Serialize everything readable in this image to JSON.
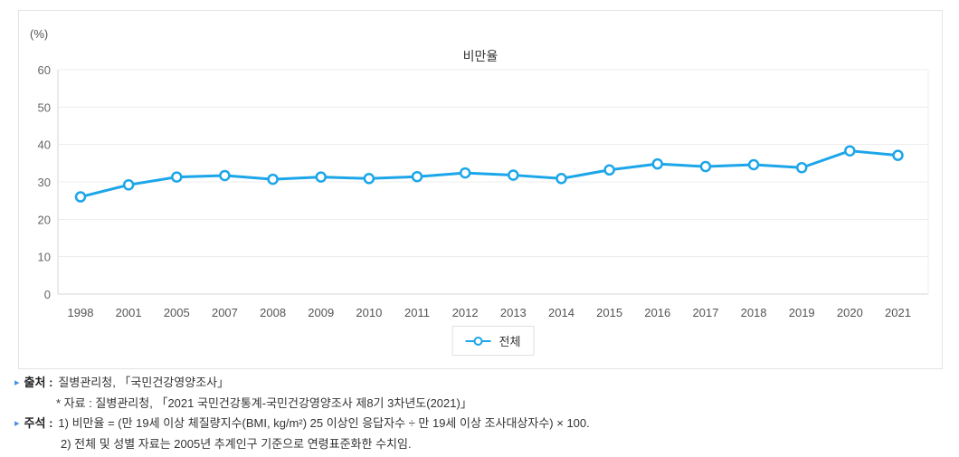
{
  "chart_data": {
    "type": "line",
    "title": "비만율",
    "unit_label": "(%)",
    "categories": [
      "1998",
      "2001",
      "2005",
      "2007",
      "2008",
      "2009",
      "2010",
      "2011",
      "2012",
      "2013",
      "2014",
      "2015",
      "2016",
      "2017",
      "2018",
      "2019",
      "2020",
      "2021"
    ],
    "series": [
      {
        "name": "전체",
        "color": "#1ca6e9",
        "values": [
          26.0,
          29.2,
          31.3,
          31.7,
          30.7,
          31.3,
          30.9,
          31.4,
          32.4,
          31.8,
          30.9,
          33.2,
          34.8,
          34.1,
          34.6,
          33.8,
          38.3,
          37.1
        ]
      }
    ],
    "ylim": [
      0,
      60
    ],
    "yticks": [
      0,
      10,
      20,
      30,
      40,
      50,
      60
    ],
    "grid": true,
    "legend_position": "bottom",
    "colors": {
      "grid": "#ececec",
      "axis": "#d6d6d6",
      "tick_text": "#666666",
      "xtick_text": "#555555"
    }
  },
  "footer": {
    "bullet_color": "#4a90e2",
    "source_label": "출처 :",
    "source_text": "질병관리청, 「국민건강영양조사」",
    "source_sub": "* 자료 : 질병관리청, 「2021 국민건강통계-국민건강영양조사 제8기 3차년도(2021)」",
    "note_label": "주석 :",
    "note1": "1) 비만율 = (만 19세 이상 체질량지수(BMI, kg/m²) 25 이상인 응답자수 ÷ 만 19세 이상 조사대상자수) × 100.",
    "note2": "2) 전체 및 성별 자료는 2005년 추계인구 기준으로 연령표준화한 수치임."
  }
}
